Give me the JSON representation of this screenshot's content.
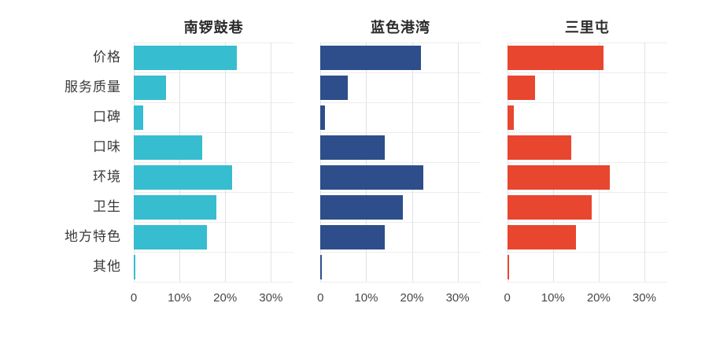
{
  "chart_data": {
    "type": "bar",
    "orientation": "horizontal",
    "title": "",
    "categories": [
      "价格",
      "服务质量",
      "口碑",
      "口味",
      "环境",
      "卫生",
      "地方特色",
      "其他"
    ],
    "series": [
      {
        "name": "南锣鼓巷",
        "color": "#36bdcf",
        "values": [
          22.5,
          7,
          2,
          15,
          21.5,
          18,
          16,
          0.3
        ]
      },
      {
        "name": "蓝色港湾",
        "color": "#2d4e8a",
        "values": [
          22,
          6,
          1,
          14,
          22.5,
          18,
          14,
          0.3
        ]
      },
      {
        "name": "三里屯",
        "color": "#e8462e",
        "values": [
          21,
          6,
          1.5,
          14,
          22.5,
          18.5,
          15,
          0.3
        ]
      }
    ],
    "x_ticks": [
      "0",
      "10%",
      "20%",
      "30%"
    ],
    "x_tick_values": [
      0,
      10,
      20,
      30
    ],
    "xlim": [
      0,
      35
    ],
    "grid": true,
    "legend": "none"
  },
  "colors": {
    "background": "#ffffff",
    "gridline": "#dfe3e6",
    "row_gridline": "#ededed",
    "text": "#3a3a3a"
  }
}
